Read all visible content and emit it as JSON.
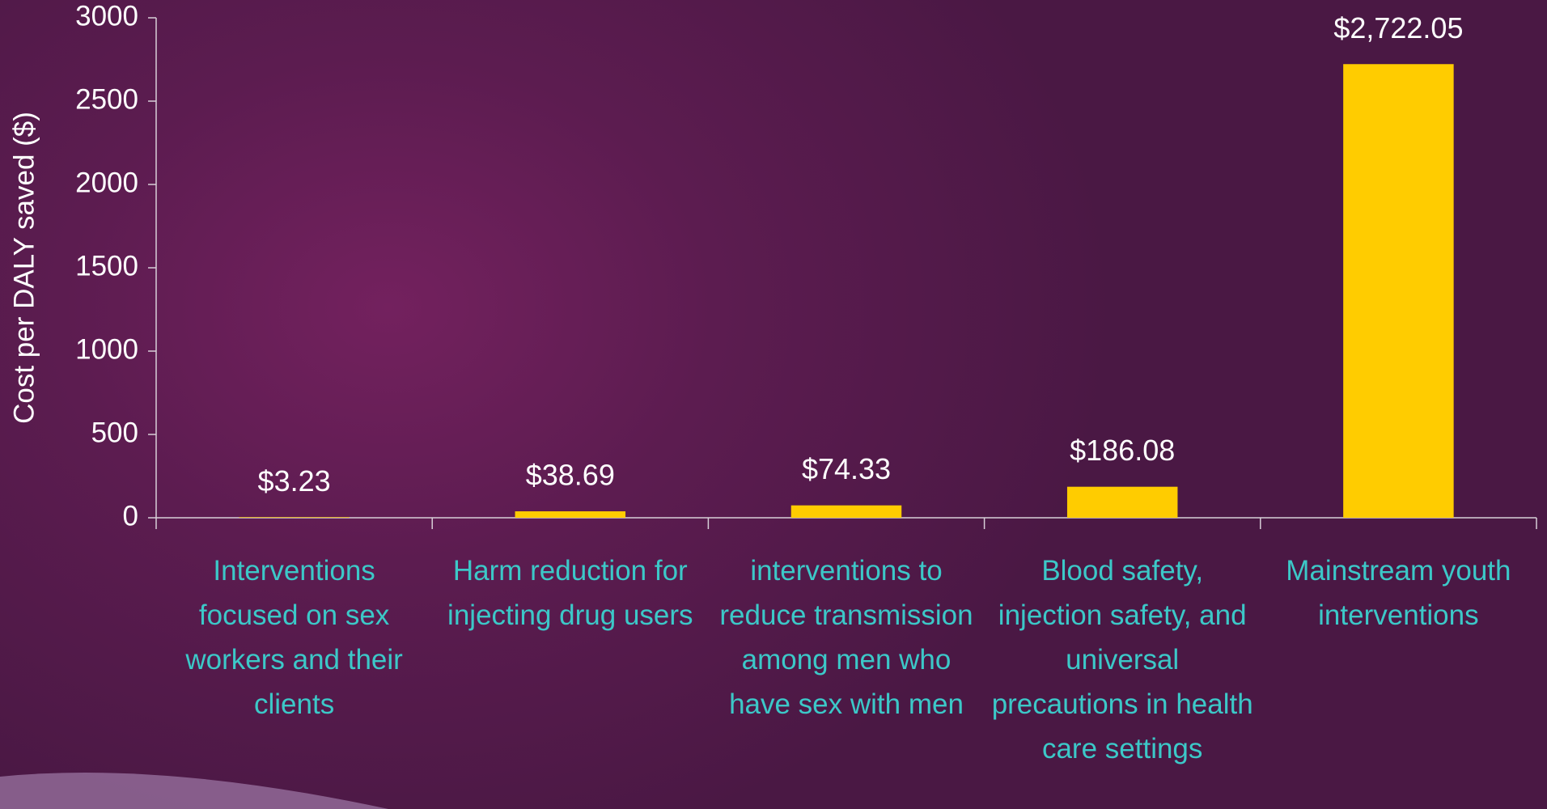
{
  "chart_data": {
    "type": "bar",
    "y_axis_label": "Cost per DALY saved ($)",
    "categories": [
      "Interventions focused on sex workers and their clients",
      "Harm reduction for injecting drug users",
      "interventions to reduce transmission among men who have sex with men",
      "Blood safety, injection safety, and universal precautions in health care settings",
      "Mainstream youth interventions"
    ],
    "values": [
      3.23,
      38.69,
      74.33,
      186.08,
      2722.05
    ],
    "value_labels": [
      "$3.23",
      "$38.69",
      "$74.33",
      "$186.08",
      "$2,722.05"
    ],
    "color": "#ffcc00",
    "ylim": [
      0,
      3000
    ],
    "yticks": [
      0,
      500,
      1000,
      1500,
      2000,
      2500,
      3000
    ],
    "grid": false
  }
}
